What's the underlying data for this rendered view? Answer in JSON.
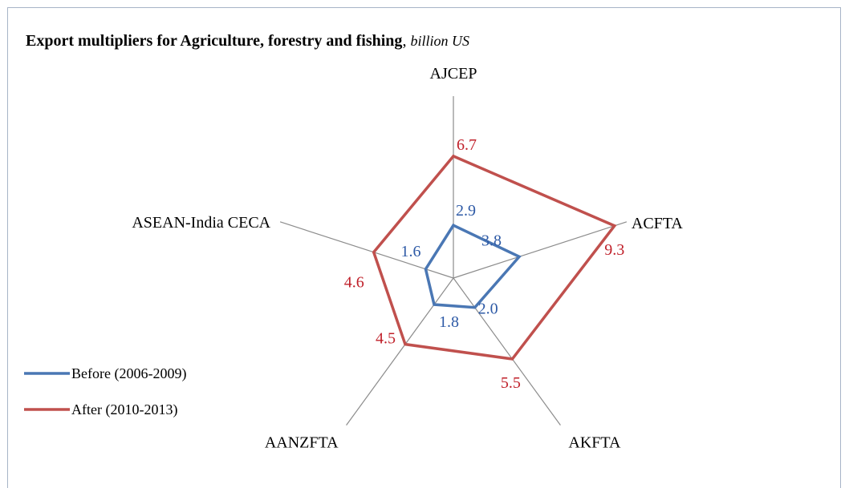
{
  "chart_data": {
    "type": "radar",
    "title": "Export multipliers for Agriculture, forestry and fishing",
    "subtitle": "billion US",
    "axes": [
      "AJCEP",
      "ACFTA",
      "AKFTA",
      "AANZFTA",
      "ASEAN-India CECA"
    ],
    "series": [
      {
        "name": "Before (2006-2009)",
        "values": [
          2.9,
          3.8,
          2.0,
          1.8,
          1.6
        ],
        "labels": [
          "2.9",
          "3.8",
          "2.0",
          "1.8",
          "1.6"
        ],
        "color": "#4a77b4"
      },
      {
        "name": "After (2010-2013)",
        "values": [
          6.7,
          9.3,
          5.5,
          4.5,
          4.6
        ],
        "labels": [
          "6.7",
          "9.3",
          "5.5",
          "4.5",
          "4.6"
        ],
        "color": "#c0504d"
      }
    ],
    "rmax": 10,
    "legend": "left",
    "grid": false
  }
}
